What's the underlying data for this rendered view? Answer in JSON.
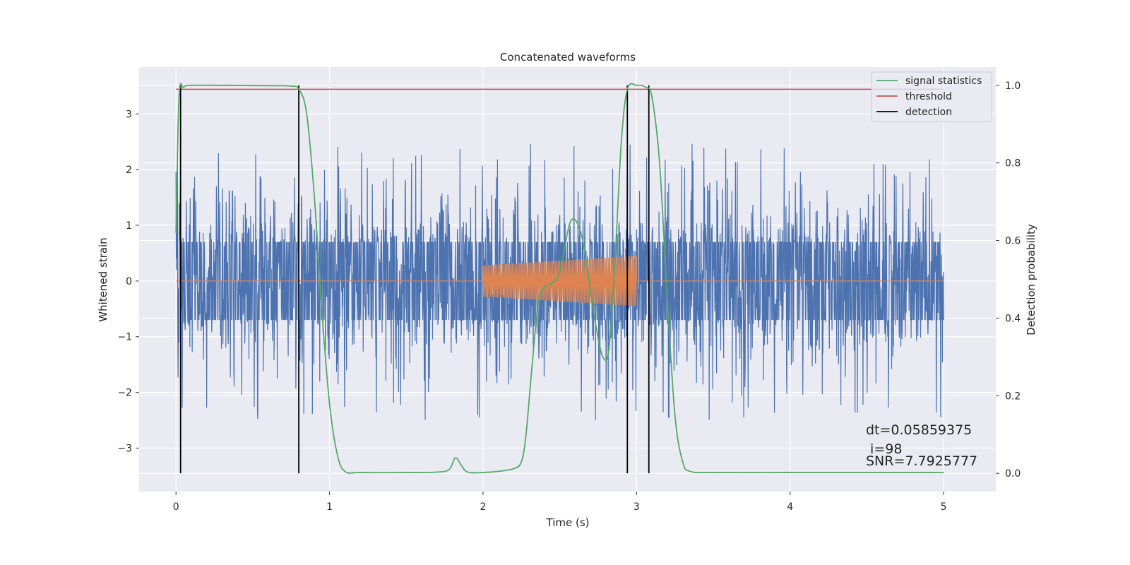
{
  "chart_data": {
    "type": "line",
    "title": "Concatenated waveforms",
    "xlabel": "Time (s)",
    "ylabel": "Whitened strain",
    "ylabel_right": "Detection probability",
    "xlim": [
      -0.24,
      5.34
    ],
    "ylim": [
      -3.78,
      3.84
    ],
    "ylim_right": [
      -0.047,
      1.047
    ],
    "x_ticks": [
      0,
      1,
      2,
      3,
      4,
      5
    ],
    "y_ticks": [
      -3,
      -2,
      -1,
      0,
      1,
      2,
      3
    ],
    "y_ticks_right": [
      0.0,
      0.2,
      0.4,
      0.6,
      0.8,
      1.0
    ],
    "grid": true,
    "legend_position": "top-right",
    "colors": {
      "strain": "#4c72b0",
      "injection": "#dd8452",
      "signal_statistics": "#55a868",
      "threshold": "#c44e52",
      "detection": "#000000",
      "background": "#eaeaf2"
    },
    "legend": [
      "signal statistics",
      "threshold",
      "detection"
    ],
    "strain": {
      "x_range": [
        0,
        5
      ],
      "envelope_core": 0.7,
      "typical_peak": 2.3,
      "min_value": -3.4,
      "max_value": 3.5
    },
    "injection": {
      "x_range": [
        2.0,
        3.0
      ],
      "amplitude_start": 0.28,
      "amplitude_end": 0.45
    },
    "signal_statistics": {
      "x": [
        0,
        0.02,
        0.05,
        0.1,
        0.3,
        0.6,
        0.75,
        0.8,
        0.85,
        0.9,
        0.95,
        1.0,
        1.05,
        1.1,
        1.2,
        1.5,
        1.7,
        1.78,
        1.82,
        1.86,
        1.9,
        2.0,
        2.1,
        2.2,
        2.25,
        2.28,
        2.32,
        2.36,
        2.4,
        2.45,
        2.5,
        2.55,
        2.58,
        2.62,
        2.66,
        2.7,
        2.74,
        2.78,
        2.82,
        2.86,
        2.9,
        2.94,
        3.0,
        3.06,
        3.1,
        3.15,
        3.2,
        3.25,
        3.3,
        3.35,
        3.5,
        4.0,
        4.5,
        5.0
      ],
      "y": [
        0.62,
        0.97,
        0.995,
        1.0,
        1.0,
        0.999,
        0.998,
        0.99,
        0.93,
        0.72,
        0.42,
        0.18,
        0.05,
        0.005,
        0.002,
        0.002,
        0.003,
        0.01,
        0.04,
        0.02,
        0.003,
        0.002,
        0.005,
        0.012,
        0.03,
        0.1,
        0.28,
        0.44,
        0.48,
        0.49,
        0.52,
        0.62,
        0.655,
        0.64,
        0.58,
        0.47,
        0.37,
        0.3,
        0.32,
        0.55,
        0.85,
        0.99,
        1.0,
        0.995,
        0.97,
        0.8,
        0.45,
        0.15,
        0.03,
        0.005,
        0.002,
        0.002,
        0.002,
        0.002
      ]
    },
    "threshold": {
      "value": 0.99,
      "x_range": [
        0,
        5
      ]
    },
    "detections": [
      0.03,
      0.8,
      2.94,
      3.08
    ],
    "annotations": [
      "dt=0.05859375",
      " i=98",
      "SNR=7.7925777"
    ]
  }
}
